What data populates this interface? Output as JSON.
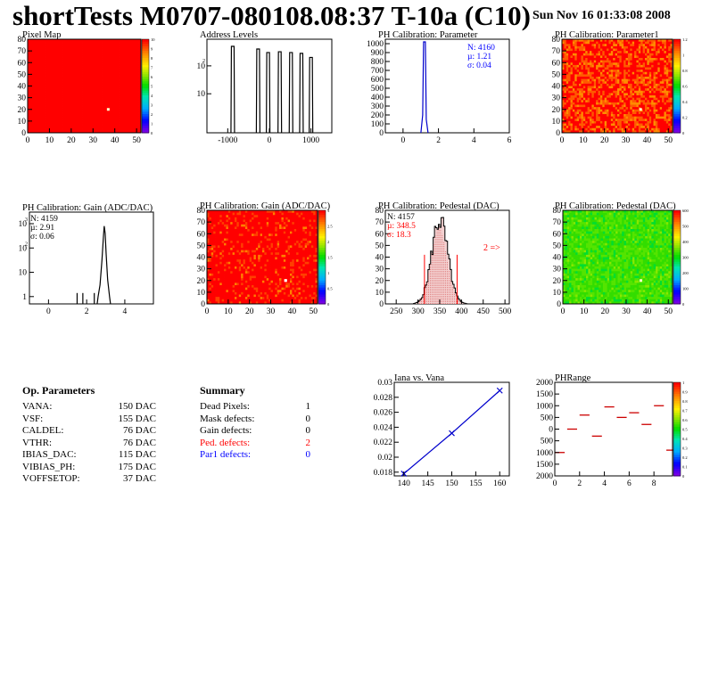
{
  "header": {
    "title": "shortTests M0707-080108.08:37 T-10a (C10)",
    "date": "Sun Nov 16 01:33:08 2008"
  },
  "chart_data": [
    {
      "type": "heatmap",
      "title": "Pixel Map",
      "xlim": [
        0,
        52
      ],
      "ylim": [
        0,
        80
      ],
      "xticks": [
        "0",
        "10",
        "20",
        "30",
        "40",
        "50"
      ],
      "yticks": [
        "0",
        "10",
        "20",
        "30",
        "40",
        "50",
        "60",
        "70",
        "80"
      ],
      "palette": "rainbow",
      "uniform_value": 10,
      "colorbar_ticks": [
        "0",
        "1",
        "2",
        "3",
        "4",
        "5",
        "6",
        "7",
        "8",
        "9",
        "10"
      ],
      "marked_pixels": [
        {
          "x": 37,
          "y": 20
        }
      ]
    },
    {
      "type": "bar",
      "title": "Address Levels",
      "xlim": [
        -1500,
        1500
      ],
      "log_y": true,
      "xticks": [
        "-1000",
        "0",
        "1000"
      ],
      "yticks": [
        "10",
        "10^2"
      ],
      "peaks": [
        {
          "x": -880,
          "y": 500
        },
        {
          "x": -270,
          "y": 400
        },
        {
          "x": -30,
          "y": 300
        },
        {
          "x": 250,
          "y": 320
        },
        {
          "x": 520,
          "y": 300
        },
        {
          "x": 770,
          "y": 280
        },
        {
          "x": 1000,
          "y": 200
        }
      ]
    },
    {
      "type": "bar",
      "title": "PH Calibration: Parameter",
      "xlim": [
        -1,
        6
      ],
      "ylim": [
        0,
        1050
      ],
      "xticks": [
        "0",
        "2",
        "4",
        "6"
      ],
      "yticks": [
        "0",
        "100",
        "200",
        "300",
        "400",
        "500",
        "600",
        "700",
        "800",
        "900",
        "1000"
      ],
      "stats": [
        "N: 4160",
        "µ: 1.21",
        "σ: 0.04"
      ],
      "peak": {
        "x": 1.21,
        "height": 1020
      }
    },
    {
      "type": "heatmap",
      "title": "PH Calibration: Parameter1",
      "xlim": [
        0,
        52
      ],
      "ylim": [
        0,
        80
      ],
      "xticks": [
        "0",
        "10",
        "20",
        "30",
        "40",
        "50"
      ],
      "yticks": [
        "0",
        "10",
        "20",
        "30",
        "40",
        "50",
        "60",
        "70",
        "80"
      ],
      "palette": "rainbow",
      "colorbar_ticks": [
        "0",
        "0.2",
        "0.4",
        "0.6",
        "0.8",
        "1",
        "1.2"
      ],
      "typical_value": 1.21
    },
    {
      "type": "bar",
      "title": "PH Calibration: Gain (ADC/DAC)",
      "xlim": [
        -1,
        5.5
      ],
      "log_y": true,
      "xticks": [
        "0",
        "2",
        "4"
      ],
      "yticks": [
        "1",
        "10",
        "10^2",
        "10^3"
      ],
      "stats": [
        "N: 4159",
        "µ: 2.91",
        "σ: 0.06"
      ],
      "peak": {
        "x": 2.91,
        "height": 800
      },
      "outliers": [
        {
          "x": 1.5,
          "y": 1
        },
        {
          "x": 1.8,
          "y": 1
        },
        {
          "x": 2.4,
          "y": 1
        }
      ]
    },
    {
      "type": "heatmap",
      "title": "PH Calibration: Gain (ADC/DAC)",
      "xlim": [
        0,
        52
      ],
      "ylim": [
        0,
        80
      ],
      "xticks": [
        "0",
        "10",
        "20",
        "30",
        "40",
        "50"
      ],
      "yticks": [
        "0",
        "10",
        "20",
        "30",
        "40",
        "50",
        "60",
        "70",
        "80"
      ],
      "palette": "rainbow",
      "colorbar_ticks": [
        "0",
        "0.5",
        "1",
        "1.5",
        "2",
        "2.5",
        "3"
      ],
      "typical_value": 2.91
    },
    {
      "type": "bar",
      "title": "PH Calibration: Pedestal (DAC)",
      "xlim": [
        225,
        510
      ],
      "ylim": [
        0,
        80
      ],
      "xticks": [
        "250",
        "300",
        "350",
        "400",
        "450",
        "500"
      ],
      "yticks": [
        "0",
        "10",
        "20",
        "30",
        "40",
        "50",
        "60",
        "70",
        "80"
      ],
      "stats": [
        "N: 4157",
        "µ: 348.5",
        "σ: 18.3"
      ],
      "annotation": "2 =>",
      "cut_lines": [
        315,
        390
      ],
      "mean": 348.5,
      "sigma": 18.3,
      "peak_height": 72
    },
    {
      "type": "heatmap",
      "title": "PH Calibration: Pedestal (DAC)",
      "xlim": [
        0,
        52
      ],
      "ylim": [
        0,
        80
      ],
      "xticks": [
        "0",
        "10",
        "20",
        "30",
        "40",
        "50"
      ],
      "yticks": [
        "0",
        "10",
        "20",
        "30",
        "40",
        "50",
        "60",
        "70",
        "80"
      ],
      "palette": "rainbow",
      "colorbar_ticks": [
        "0",
        "100",
        "200",
        "300",
        "400",
        "500",
        "600"
      ],
      "typical_value": 348.5
    },
    {
      "type": "line",
      "title": "Iana vs. Vana",
      "xlim": [
        138,
        162
      ],
      "ylim": [
        0.0175,
        0.03
      ],
      "xticks": [
        "140",
        "145",
        "150",
        "155",
        "160"
      ],
      "yticks": [
        "0.018",
        "0.02",
        "0.022",
        "0.024",
        "0.026",
        "0.028",
        "0.03"
      ],
      "x": [
        140,
        150,
        160
      ],
      "y": [
        0.0178,
        0.0232,
        0.0289
      ]
    },
    {
      "type": "scatter",
      "title": "PHRange",
      "xlim": [
        0,
        9.5
      ],
      "ylim": [
        -2000,
        2000
      ],
      "xticks": [
        "0",
        "2",
        "4",
        "6",
        "8"
      ],
      "yticks": [
        "-2000",
        "-1500",
        "-1000",
        "-500",
        "0",
        "500",
        "1000",
        "1500",
        "2000"
      ],
      "colorbar_ticks": [
        "0",
        "0.1",
        "0.2",
        "0.3",
        "0.4",
        "0.5",
        "0.6",
        "0.7",
        "0.8",
        "0.9",
        "1"
      ],
      "x": [
        0,
        1,
        2,
        3,
        4,
        5,
        6,
        7,
        8,
        9
      ],
      "y": [
        -1000,
        0,
        600,
        -300,
        950,
        500,
        700,
        200,
        1000,
        -900
      ]
    }
  ],
  "op_parameters": {
    "heading": "Op. Parameters",
    "rows": [
      {
        "name": "VANA:",
        "value": "150 DAC"
      },
      {
        "name": "VSF:",
        "value": "155 DAC"
      },
      {
        "name": "CALDEL:",
        "value": "76 DAC"
      },
      {
        "name": "VTHR:",
        "value": "76 DAC"
      },
      {
        "name": "IBIAS_DAC:",
        "value": "115 DAC"
      },
      {
        "name": "VIBIAS_PH:",
        "value": "175 DAC"
      },
      {
        "name": "VOFFSETOP:",
        "value": "37 DAC"
      }
    ]
  },
  "summary": {
    "heading": "Summary",
    "rows": [
      {
        "name": "Dead Pixels:",
        "value": "1",
        "color": "#000000"
      },
      {
        "name": "Mask defects:",
        "value": "0",
        "color": "#000000"
      },
      {
        "name": "Gain defects:",
        "value": "0",
        "color": "#000000"
      },
      {
        "name": "Ped. defects:",
        "value": "2",
        "color": "#ff0000"
      },
      {
        "name": "Par1 defects:",
        "value": "0",
        "color": "#0000ff"
      }
    ]
  }
}
